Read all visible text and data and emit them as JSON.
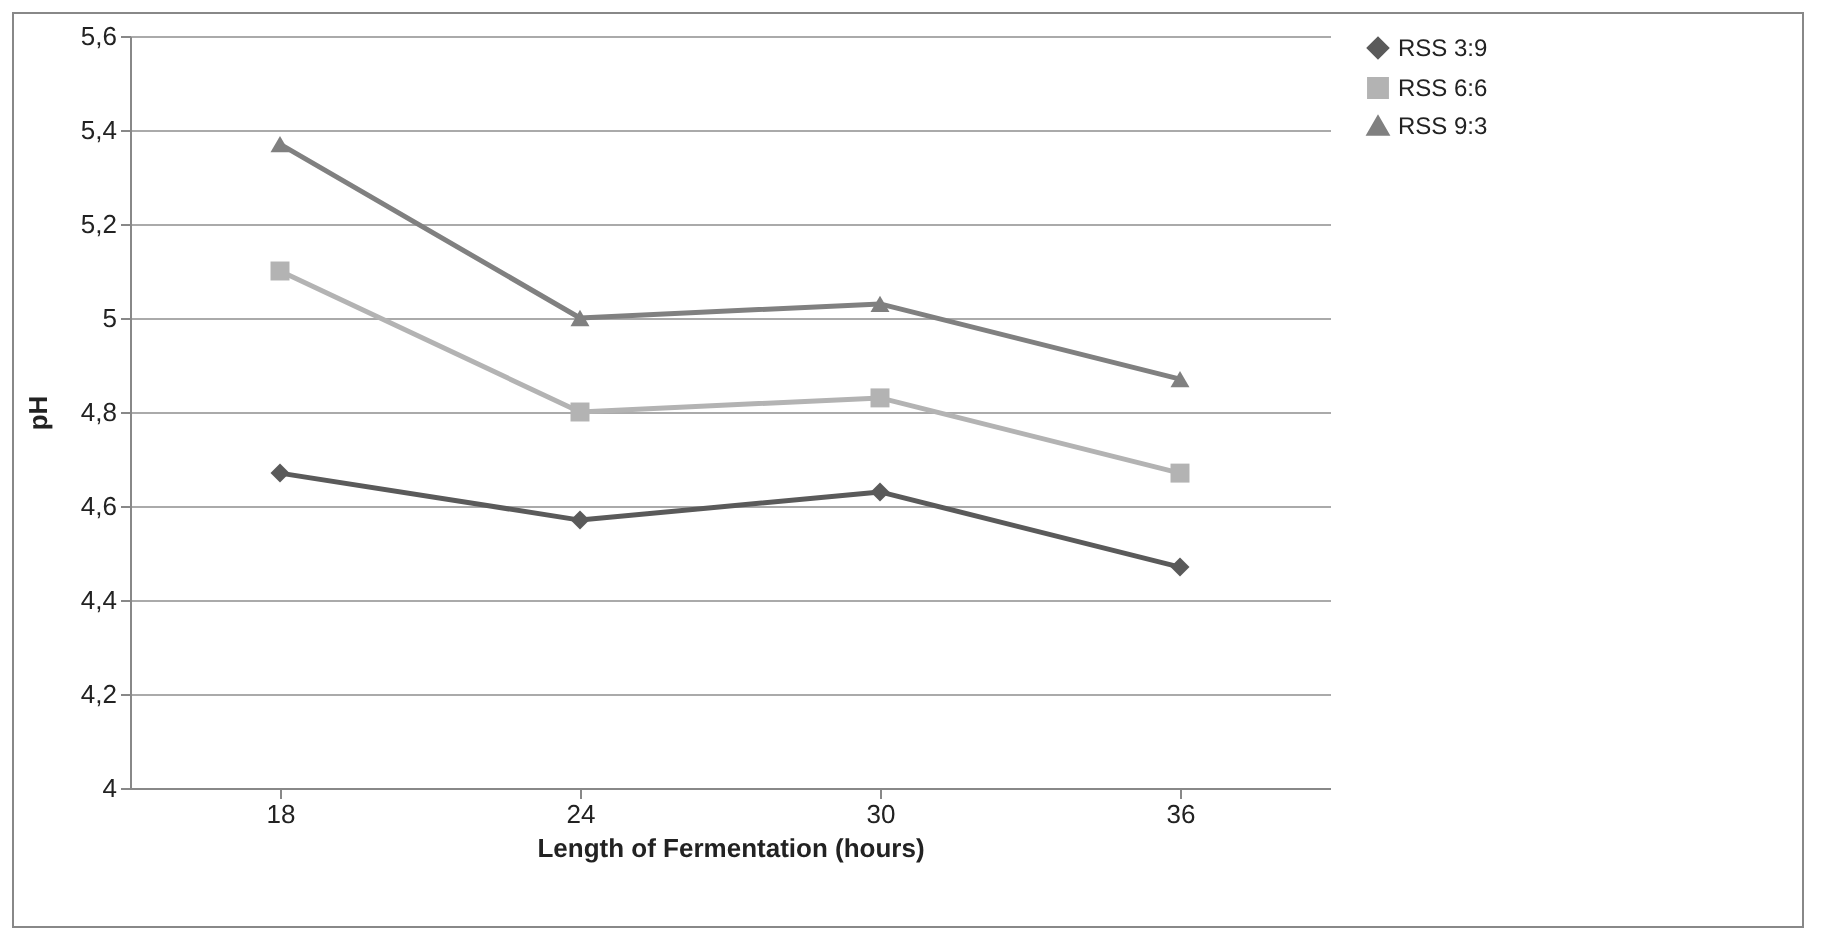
{
  "chart_data": {
    "type": "line",
    "xlabel": "Length of Fermentation (hours)",
    "ylabel": "pH",
    "categories": [
      "18",
      "24",
      "30",
      "36"
    ],
    "series": [
      {
        "name": "RSS 3:9",
        "color": "#5a5a5a",
        "marker": "diamond",
        "values": [
          4.67,
          4.57,
          4.63,
          4.47
        ]
      },
      {
        "name": "RSS 6:6",
        "color": "#b3b3b3",
        "marker": "square",
        "values": [
          5.1,
          4.8,
          4.83,
          4.67
        ]
      },
      {
        "name": "RSS 9:3",
        "color": "#808080",
        "marker": "triangle",
        "values": [
          5.37,
          5.0,
          5.03,
          4.87
        ]
      }
    ],
    "ylim": [
      4,
      5.6
    ],
    "yticks": [
      {
        "value": 4,
        "label": "4"
      },
      {
        "value": 4.2,
        "label": "4,2"
      },
      {
        "value": 4.4,
        "label": "4,4"
      },
      {
        "value": 4.6,
        "label": "4,6"
      },
      {
        "value": 4.8,
        "label": "4,8"
      },
      {
        "value": 5,
        "label": "5"
      },
      {
        "value": 5.2,
        "label": "5,2"
      },
      {
        "value": 5.4,
        "label": "5,4"
      },
      {
        "value": 5.6,
        "label": "5,6"
      }
    ],
    "grid": "y",
    "legend": "right",
    "line_style": "solid"
  }
}
